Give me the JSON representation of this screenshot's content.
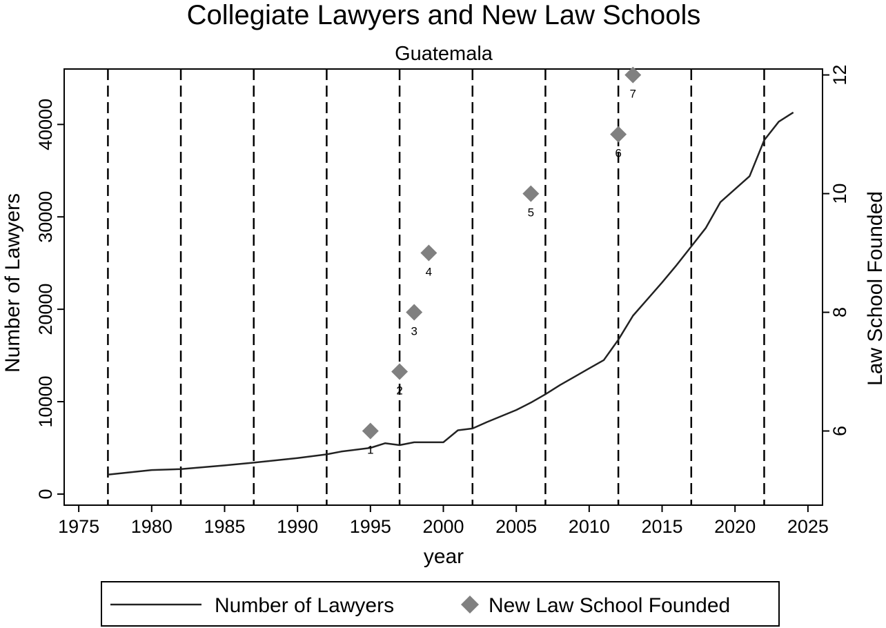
{
  "chart_data": {
    "type": "line",
    "title": "Collegiate Lawyers and New Law Schools",
    "subtitle": "Guatemala",
    "xlabel": "year",
    "ylabel": "Number of Lawyers",
    "y2label": "Law School Founded",
    "xlim": [
      1974,
      2026
    ],
    "ylim": [
      -1200,
      46000
    ],
    "y2lim": [
      4.75,
      12.1
    ],
    "x_ticks": [
      1975,
      1980,
      1985,
      1990,
      1995,
      2000,
      2005,
      2010,
      2015,
      2020,
      2025
    ],
    "y_ticks": [
      0,
      10000,
      20000,
      30000,
      40000
    ],
    "y2_ticks": [
      6,
      8,
      10,
      12
    ],
    "grid": false,
    "vertical_reference_lines": [
      1977,
      1982,
      1987,
      1992,
      1997,
      2002,
      2007,
      2012,
      2017,
      2022
    ],
    "series": [
      {
        "name": "Number of Lawyers",
        "type": "line",
        "color": "#222222",
        "points": [
          [
            1977,
            2100
          ],
          [
            1980,
            2600
          ],
          [
            1982,
            2700
          ],
          [
            1985,
            3100
          ],
          [
            1987,
            3400
          ],
          [
            1990,
            3900
          ],
          [
            1992,
            4300
          ],
          [
            1993,
            4600
          ],
          [
            1995,
            5000
          ],
          [
            1996,
            5500
          ],
          [
            1997,
            5300
          ],
          [
            1998,
            5600
          ],
          [
            1999,
            5600
          ],
          [
            2000,
            5600
          ],
          [
            2001,
            6900
          ],
          [
            2002,
            7100
          ],
          [
            2003,
            7800
          ],
          [
            2005,
            9100
          ],
          [
            2006,
            9900
          ],
          [
            2007,
            10800
          ],
          [
            2008,
            11800
          ],
          [
            2009,
            12700
          ],
          [
            2010,
            13600
          ],
          [
            2011,
            14500
          ],
          [
            2012,
            16700
          ],
          [
            2013,
            19300
          ],
          [
            2014,
            21100
          ],
          [
            2015,
            22900
          ],
          [
            2016,
            24800
          ],
          [
            2017,
            26800
          ],
          [
            2018,
            28800
          ],
          [
            2019,
            31600
          ],
          [
            2020,
            33000
          ],
          [
            2021,
            34400
          ],
          [
            2022,
            38300
          ],
          [
            2023,
            40300
          ],
          [
            2024,
            41300
          ]
        ]
      },
      {
        "name": "New Law School Founded",
        "type": "scatter",
        "axis": "right",
        "marker": "diamond",
        "color": "#808080",
        "points": [
          {
            "x": 1995,
            "y": 6,
            "label": "1"
          },
          {
            "x": 1997,
            "y": 7,
            "label": "2"
          },
          {
            "x": 1998,
            "y": 8,
            "label": "3"
          },
          {
            "x": 1999,
            "y": 9,
            "label": "4"
          },
          {
            "x": 2006,
            "y": 10,
            "label": "5"
          },
          {
            "x": 2012,
            "y": 11,
            "label": "6"
          },
          {
            "x": 2013,
            "y": 12,
            "label": "7"
          }
        ]
      }
    ],
    "legend": {
      "position": "bottom",
      "entries": [
        "Number of Lawyers",
        "New Law School Founded"
      ]
    }
  }
}
